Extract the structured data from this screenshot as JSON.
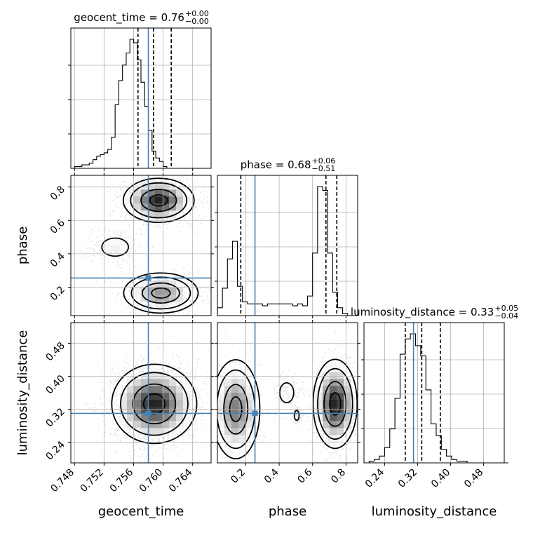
{
  "colors": {
    "truth": "#4682b4",
    "grid": "#b0b0b0",
    "line": "#000000",
    "background": "#ffffff"
  },
  "chart_data": {
    "type": "corner",
    "parameters": [
      {
        "key": "geocent_time",
        "label": "geocent_time",
        "title": "geocent_time = 0.76",
        "title_value": "geocent_time = 0.76",
        "title_upper": "+0.00",
        "title_lower": "−0.00",
        "range": [
          0.7475,
          0.7665
        ],
        "ticks": [
          0.748,
          0.752,
          0.756,
          0.76,
          0.764
        ],
        "tick_labels": [
          "0.748",
          "0.752",
          "0.756",
          "0.760",
          "0.764"
        ],
        "truth": 0.758,
        "quantiles": [
          0.7566,
          0.7587,
          0.7611
        ],
        "hist_edges_start": 0.7475,
        "hist_bin_width": 0.0005,
        "hist_counts": [
          0,
          1,
          1,
          2,
          2,
          3,
          5,
          7,
          8,
          9,
          11,
          18,
          37,
          51,
          60,
          67,
          75,
          73,
          63,
          50,
          36,
          22,
          10,
          6,
          4,
          1,
          0,
          0
        ]
      },
      {
        "key": "phase",
        "label": "phase",
        "title": "phase = 0.68",
        "title_value": "phase = 0.68",
        "title_upper": "+0.06",
        "title_lower": "−0.51",
        "range": [
          0.03,
          0.87
        ],
        "ticks": [
          0.2,
          0.4,
          0.6,
          0.8
        ],
        "tick_labels": [
          "0.2",
          "0.4",
          "0.6",
          "0.8"
        ],
        "truth": 0.255,
        "quantiles": [
          0.17,
          0.68,
          0.745
        ],
        "hist_edges_start": 0.03,
        "hist_bin_width": 0.03,
        "hist_counts": [
          4,
          14,
          29,
          38,
          15,
          7,
          6,
          6,
          6,
          5,
          6,
          6,
          6,
          6,
          6,
          5,
          6,
          5,
          10,
          32,
          66,
          64,
          32,
          12,
          4,
          1,
          0,
          0
        ]
      },
      {
        "key": "luminosity_distance",
        "label": "luminosity_distance",
        "title": "luminosity_distance = 0.33",
        "title_value": "luminosity_distance = 0.33",
        "title_upper": "+0.05",
        "title_lower": "−0.04",
        "range": [
          0.19,
          0.53
        ],
        "ticks": [
          0.24,
          0.32,
          0.4,
          0.48
        ],
        "tick_labels": [
          "0.24",
          "0.32",
          "0.40",
          "0.48"
        ],
        "truth": 0.31,
        "quantiles": [
          0.29,
          0.33,
          0.375
        ],
        "hist_edges_start": 0.19,
        "hist_bin_width": 0.0125,
        "hist_counts": [
          0,
          1,
          2,
          4,
          9,
          20,
          38,
          64,
          73,
          76,
          69,
          63,
          43,
          23,
          16,
          8,
          4,
          2,
          1,
          1,
          0,
          0,
          0,
          0,
          0,
          0,
          0,
          0
        ]
      }
    ],
    "pairs": [
      {
        "x": "geocent_time",
        "y": "phase",
        "modes": [
          {
            "cx": 0.7594,
            "cy": 0.72,
            "sx": 0.002,
            "sy": 0.055,
            "weight": 0.55
          },
          {
            "cx": 0.7597,
            "cy": 0.165,
            "sx": 0.0021,
            "sy": 0.05,
            "weight": 0.3
          },
          {
            "cx": 0.7535,
            "cy": 0.44,
            "sx": 0.0015,
            "sy": 0.045,
            "weight": 0.1
          }
        ]
      },
      {
        "x": "geocent_time",
        "y": "luminosity_distance",
        "modes": [
          {
            "cx": 0.7588,
            "cy": 0.333,
            "sx": 0.0024,
            "sy": 0.04,
            "weight": 1.0
          }
        ]
      },
      {
        "x": "phase",
        "y": "luminosity_distance",
        "modes": [
          {
            "cx": 0.735,
            "cy": 0.333,
            "sx": 0.055,
            "sy": 0.045,
            "weight": 0.55
          },
          {
            "cx": 0.14,
            "cy": 0.32,
            "sx": 0.06,
            "sy": 0.05,
            "weight": 0.35
          },
          {
            "cx": 0.445,
            "cy": 0.36,
            "sx": 0.035,
            "sy": 0.02,
            "weight": 0.06
          },
          {
            "cx": 0.505,
            "cy": 0.305,
            "sx": 0.012,
            "sy": 0.01,
            "weight": 0.04
          }
        ]
      }
    ],
    "grid": true,
    "legend": "none"
  }
}
